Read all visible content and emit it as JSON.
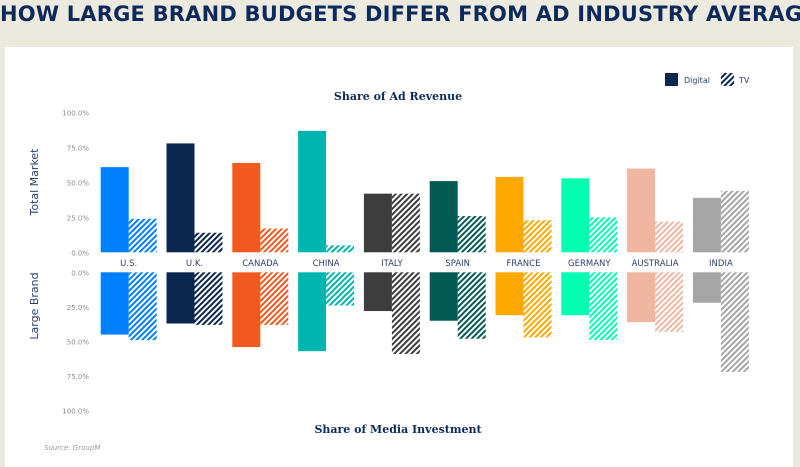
{
  "chart_data": {
    "type": "bar",
    "title": "HOW LARGE BRAND BUDGETS DIFFER FROM AD INDUSTRY AVERAGES",
    "top_panel": {
      "subtitle": "Share of Ad Revenue",
      "ylabel": "Total Market",
      "ylim": [
        0,
        100
      ]
    },
    "bottom_panel": {
      "subtitle": "Share of Media Investment",
      "ylabel": "Large Brand",
      "ylim": [
        0,
        100
      ],
      "inverted": true
    },
    "yticks": [
      "0.0%",
      "25.0%",
      "50.0%",
      "75.0%",
      "100.0%"
    ],
    "legend": {
      "position": "top-right",
      "entries": [
        "Digital",
        "TV"
      ]
    },
    "source": "Source: GroupM",
    "categories": [
      "U.S.",
      "U.K.",
      "CANADA",
      "CHINA",
      "ITALY",
      "SPAIN",
      "FRANCE",
      "GERMANY",
      "AUSTRALIA",
      "INDIA"
    ],
    "colors": [
      "#0080ff",
      "#0b2750",
      "#f15a1f",
      "#00b5b0",
      "#3d3d3d",
      "#035a55",
      "#ffa800",
      "#00ffb0",
      "#f0b6a2",
      "#a6a6a6"
    ],
    "series": [
      {
        "name": "Digital",
        "panel": "Total Market",
        "values": [
          61,
          78,
          64,
          87,
          42,
          51,
          54,
          53,
          60,
          39
        ]
      },
      {
        "name": "TV",
        "panel": "Total Market",
        "values": [
          24,
          14,
          17,
          5,
          42,
          26,
          23,
          25,
          22,
          44
        ]
      },
      {
        "name": "Digital",
        "panel": "Large Brand",
        "values": [
          45,
          37,
          54,
          57,
          28,
          35,
          31,
          31,
          36,
          22
        ]
      },
      {
        "name": "TV",
        "panel": "Large Brand",
        "values": [
          49,
          38,
          38,
          24,
          59,
          48,
          47,
          49,
          43,
          72
        ]
      }
    ],
    "grid": false
  }
}
